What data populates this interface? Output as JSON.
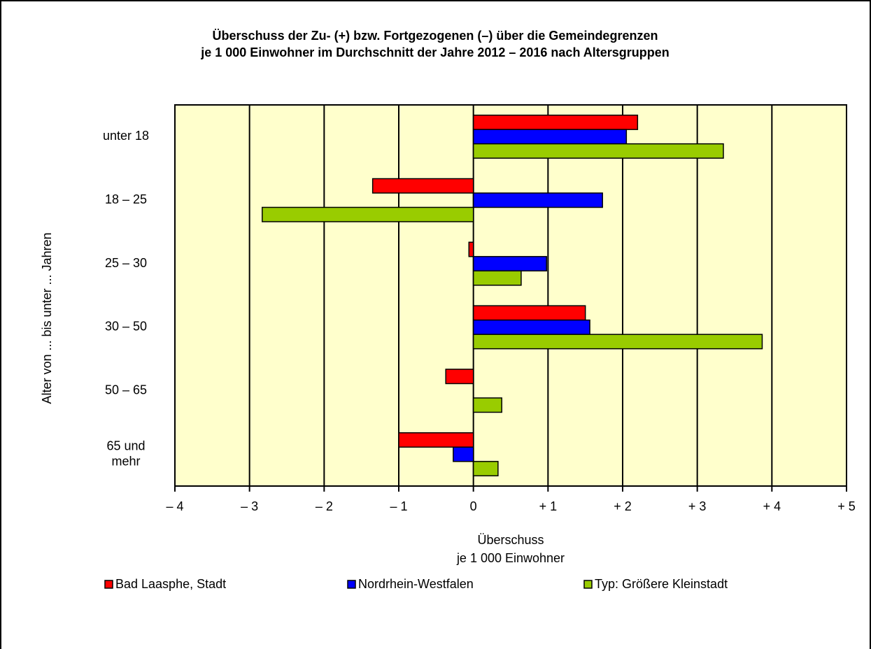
{
  "chart_data": {
    "type": "hbar",
    "title": "Überschuss der Zu- (+) bzw. Fortgezogenen (–) über die Gemeindegrenzen\nje 1 000 Einwohner im Durchschnitt der Jahre 2012 – 2016 nach Altersgruppen",
    "x_label": "Überschuss\nje 1 000 Einwohner",
    "y_label": "Alter von ... bis unter ... Jahren",
    "categories": [
      "unter 18",
      "18 – 25",
      "25 – 30",
      "30 – 50",
      "50 – 65",
      "65 und\nmehr"
    ],
    "series": [
      {
        "name": "Bad Laasphe, Stadt",
        "color": "#ff0000",
        "values": [
          2.2,
          -1.35,
          -0.06,
          1.5,
          -0.37,
          -1.0
        ]
      },
      {
        "name": "Nordrhein-Westfalen",
        "color": "#0000ff",
        "values": [
          2.05,
          1.73,
          0.98,
          1.56,
          0,
          -0.27
        ]
      },
      {
        "name": "Typ: Größere Kleinstadt",
        "color": "#99cc00",
        "values": [
          3.35,
          -2.83,
          0.64,
          3.87,
          0.38,
          0.33
        ]
      }
    ],
    "xlim": [
      -4,
      5
    ],
    "xticks": [
      {
        "value": -4,
        "label": "– 4"
      },
      {
        "value": -3,
        "label": "– 3"
      },
      {
        "value": -2,
        "label": "– 2"
      },
      {
        "value": -1,
        "label": "– 1"
      },
      0,
      {
        "value": 1,
        "label": "+ 1"
      },
      {
        "value": 2,
        "label": "+ 2"
      },
      {
        "value": 3,
        "label": "+ 3"
      },
      {
        "value": 4,
        "label": "+ 4"
      },
      {
        "value": 5,
        "label": "+ 5"
      }
    ],
    "grid": true,
    "legend": "bottom",
    "background": "#ffffcc"
  }
}
